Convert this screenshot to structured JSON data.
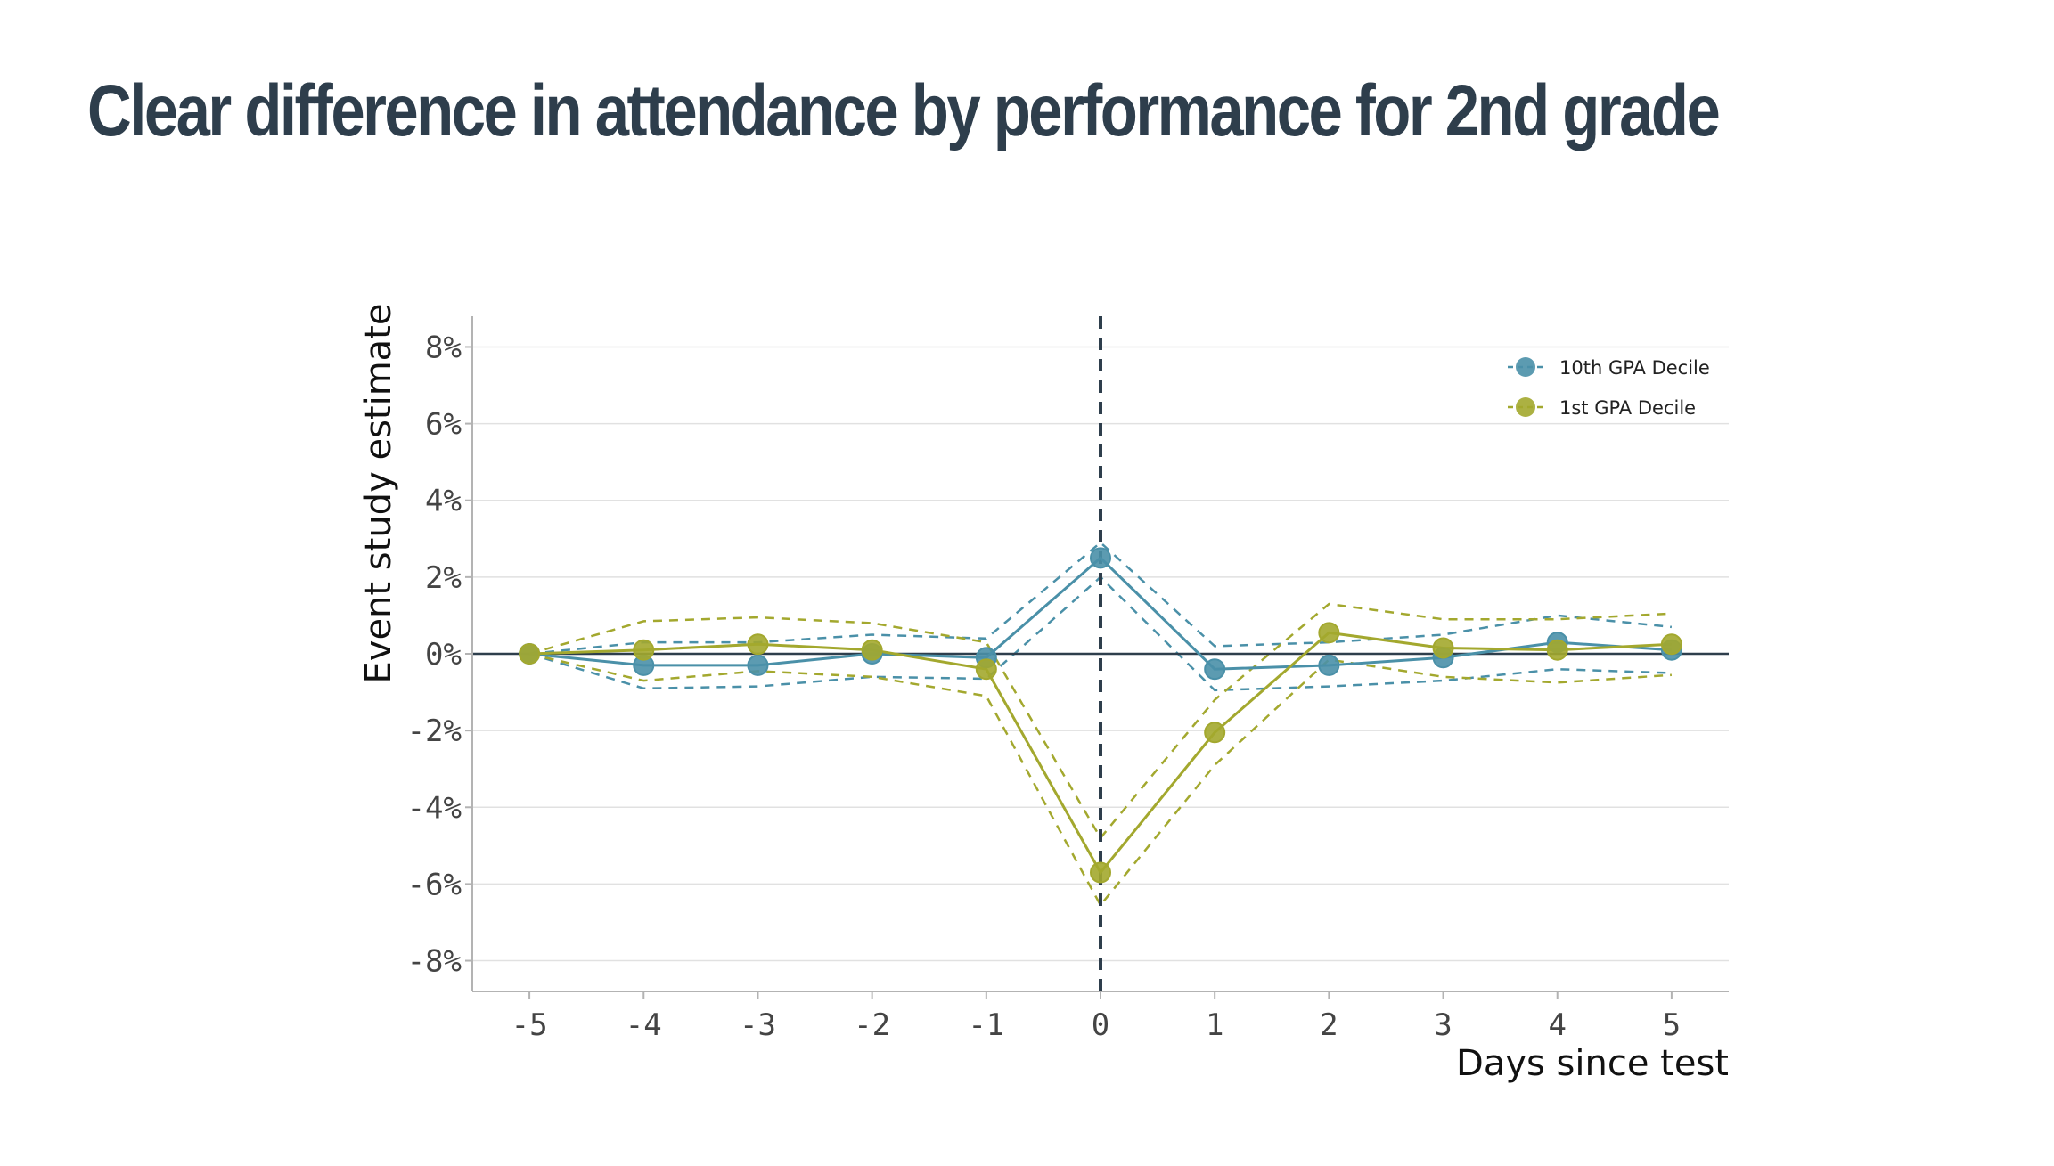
{
  "slide": {
    "title": "Clear difference in attendance by performance for 2nd grade"
  },
  "colors": {
    "title": "#2e3e4c",
    "grid": "#e1e1e1",
    "axis": "#b3b3b3",
    "zero_line": "#2e3e4c",
    "test_day_line": "#2e3e4c"
  },
  "chart_data": {
    "type": "line",
    "xlabel": "Days since test",
    "ylabel": "Event study estimate",
    "x": [
      -5,
      -4,
      -3,
      -2,
      -1,
      0,
      1,
      2,
      3,
      4,
      5
    ],
    "x_tick_labels": [
      "-5",
      "-4",
      "-3",
      "-2",
      "-1",
      "0",
      "1",
      "2",
      "3",
      "4",
      "5"
    ],
    "y_ticks": [
      -8,
      -6,
      -4,
      -2,
      0,
      2,
      4,
      6,
      8
    ],
    "y_tick_labels": [
      "-8%",
      "-6%",
      "-4%",
      "-2%",
      "0%",
      "2%",
      "4%",
      "6%",
      "8%"
    ],
    "xlim": [
      -5.5,
      5.5
    ],
    "ylim": [
      -8.8,
      8.8
    ],
    "grid": "horizontal",
    "legend_position": "top-right",
    "reference_lines": [
      {
        "axis": "x",
        "value": 0,
        "style": "dashed"
      },
      {
        "axis": "y",
        "value": 0,
        "style": "solid"
      }
    ],
    "series": [
      {
        "name": "10th GPA Decile",
        "color": "#4a90a8",
        "values": [
          0.0,
          -0.3,
          -0.3,
          0.0,
          -0.1,
          2.5,
          -0.4,
          -0.3,
          -0.1,
          0.3,
          0.1
        ],
        "ci_upper": [
          0.0,
          0.3,
          0.3,
          0.5,
          0.4,
          2.9,
          0.2,
          0.3,
          0.5,
          1.0,
          0.7
        ],
        "ci_lower": [
          0.0,
          -0.9,
          -0.85,
          -0.6,
          -0.65,
          2.0,
          -0.95,
          -0.85,
          -0.7,
          -0.4,
          -0.5
        ]
      },
      {
        "name": "1st GPA Decile",
        "color": "#a3a82e",
        "values": [
          0.0,
          0.1,
          0.25,
          0.1,
          -0.4,
          -5.7,
          -2.05,
          0.55,
          0.15,
          0.1,
          0.25
        ],
        "ci_upper": [
          0.0,
          0.85,
          0.95,
          0.8,
          0.3,
          -4.8,
          -1.2,
          1.3,
          0.9,
          0.9,
          1.05
        ],
        "ci_lower": [
          0.0,
          -0.7,
          -0.45,
          -0.6,
          -1.1,
          -6.55,
          -2.9,
          -0.15,
          -0.6,
          -0.75,
          -0.55
        ]
      }
    ]
  }
}
